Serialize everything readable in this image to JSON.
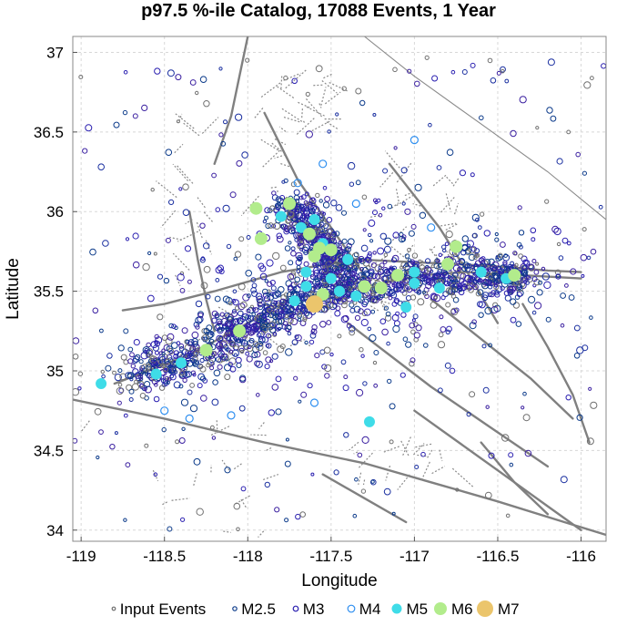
{
  "chart_data": {
    "type": "scatter",
    "title": "p97.5 %-ile Catalog, 17088 Events, 1 Year",
    "xlabel": "Longitude",
    "ylabel": "Latitude",
    "xlim": [
      -119.05,
      -115.85
    ],
    "ylim": [
      33.93,
      37.1
    ],
    "xticks": [
      -119,
      -118.5,
      -118,
      -117.5,
      -117,
      -116.5,
      -116
    ],
    "xtick_labels": [
      "-119",
      "-118.5",
      "-118",
      "-117.5",
      "-117",
      "-116.5",
      "-116"
    ],
    "yticks": [
      34,
      34.5,
      35,
      35.5,
      36,
      36.5,
      37
    ],
    "ytick_labels": [
      "34",
      "34.5",
      "35",
      "35.5",
      "36",
      "36.5",
      "37"
    ],
    "grid": true,
    "legend_position": "bottom",
    "legend": [
      {
        "label": "Input Events",
        "marker": "ring",
        "color": "#707070"
      },
      {
        "label": "M2.5",
        "marker": "ring",
        "color": "#0b3a8a"
      },
      {
        "label": "M3",
        "marker": "ring",
        "color": "#2a1fb0"
      },
      {
        "label": "M4",
        "marker": "ring",
        "color": "#2f8ff0"
      },
      {
        "label": "M5",
        "marker": "disc",
        "color": "#3fdce8"
      },
      {
        "label": "M6",
        "marker": "disc",
        "color": "#b2ec8c"
      },
      {
        "label": "M7",
        "marker": "disc",
        "color": "#ebc56c"
      }
    ],
    "events_M7": [
      {
        "lon": -117.6,
        "lat": 35.42
      }
    ],
    "events_M6": [
      {
        "lon": -116.75,
        "lat": 35.78
      },
      {
        "lon": -116.8,
        "lat": 35.67
      },
      {
        "lon": -117.1,
        "lat": 35.6
      },
      {
        "lon": -117.5,
        "lat": 35.76
      },
      {
        "lon": -117.57,
        "lat": 35.77
      },
      {
        "lon": -117.63,
        "lat": 35.86
      },
      {
        "lon": -117.6,
        "lat": 35.72
      },
      {
        "lon": -117.3,
        "lat": 35.53
      },
      {
        "lon": -117.55,
        "lat": 35.48
      },
      {
        "lon": -117.92,
        "lat": 35.83
      },
      {
        "lon": -117.95,
        "lat": 36.02
      },
      {
        "lon": -117.75,
        "lat": 36.05
      },
      {
        "lon": -116.4,
        "lat": 35.6
      },
      {
        "lon": -117.2,
        "lat": 35.52
      },
      {
        "lon": -118.05,
        "lat": 35.25
      },
      {
        "lon": -118.25,
        "lat": 35.13
      }
    ],
    "events_M5": [
      {
        "lon": -118.88,
        "lat": 34.92
      },
      {
        "lon": -117.27,
        "lat": 34.68
      },
      {
        "lon": -117.05,
        "lat": 35.4
      },
      {
        "lon": -117.35,
        "lat": 35.47
      },
      {
        "lon": -117.45,
        "lat": 35.5
      },
      {
        "lon": -117.65,
        "lat": 35.53
      },
      {
        "lon": -117.72,
        "lat": 35.44
      },
      {
        "lon": -117.8,
        "lat": 35.97
      },
      {
        "lon": -117.68,
        "lat": 35.9
      },
      {
        "lon": -116.85,
        "lat": 35.52
      },
      {
        "lon": -117.0,
        "lat": 35.55
      },
      {
        "lon": -117.55,
        "lat": 35.8
      },
      {
        "lon": -117.6,
        "lat": 35.95
      },
      {
        "lon": -117.65,
        "lat": 35.62
      },
      {
        "lon": -117.5,
        "lat": 35.58
      },
      {
        "lon": -118.4,
        "lat": 35.05
      },
      {
        "lon": -118.55,
        "lat": 34.98
      },
      {
        "lon": -117.4,
        "lat": 35.7
      },
      {
        "lon": -116.45,
        "lat": 35.58
      },
      {
        "lon": -116.6,
        "lat": 35.62
      },
      {
        "lon": -117.0,
        "lat": 35.62
      }
    ],
    "events_M4": [
      {
        "lon": -117.0,
        "lat": 36.45
      },
      {
        "lon": -117.55,
        "lat": 36.3
      },
      {
        "lon": -118.35,
        "lat": 34.7
      },
      {
        "lon": -118.1,
        "lat": 34.72
      },
      {
        "lon": -117.6,
        "lat": 34.8
      },
      {
        "lon": -117.7,
        "lat": 36.18
      },
      {
        "lon": -118.5,
        "lat": 34.75
      },
      {
        "lon": -117.35,
        "lat": 36.05
      },
      {
        "lon": -116.9,
        "lat": 35.9
      }
    ],
    "faults": [
      {
        "lon": [
          -119.05,
          -118.5,
          -117.9,
          -117.3,
          -116.9,
          -116.5,
          -116.1,
          -115.85
        ],
        "lat": [
          34.82,
          34.7,
          34.55,
          34.42,
          34.3,
          34.18,
          34.05,
          33.97
        ]
      },
      {
        "lon": [
          -118.8,
          -118.35,
          -118.0,
          -117.75,
          -117.45,
          -117.2,
          -116.95,
          -116.7,
          -116.35,
          -116.0
        ],
        "lat": [
          34.92,
          35.1,
          35.3,
          35.45,
          35.5,
          35.55,
          35.6,
          35.62,
          35.6,
          35.58
        ]
      },
      {
        "lon": [
          -118.75,
          -118.5,
          -118.2,
          -117.8,
          -117.35,
          -116.95,
          -116.55,
          -116.2,
          -116.0
        ],
        "lat": [
          35.38,
          35.42,
          35.5,
          35.62,
          35.7,
          35.68,
          35.66,
          35.63,
          35.62
        ]
      },
      {
        "lon": [
          -117.9,
          -117.7,
          -117.5,
          -117.3
        ],
        "lat": [
          36.62,
          36.2,
          35.9,
          35.6
        ]
      },
      {
        "lon": [
          -117.15,
          -117.0,
          -116.85,
          -116.7,
          -116.5
        ],
        "lat": [
          36.3,
          36.1,
          35.9,
          35.65,
          35.3
        ]
      },
      {
        "lon": [
          -116.9,
          -116.6,
          -116.3,
          -116.05
        ],
        "lat": [
          35.45,
          35.2,
          34.95,
          34.7
        ]
      },
      {
        "lon": [
          -117.4,
          -117.15,
          -116.9,
          -116.55,
          -116.2
        ],
        "lat": [
          35.3,
          35.1,
          34.9,
          34.65,
          34.4
        ]
      },
      {
        "lon": [
          -117.0,
          -116.8,
          -116.6,
          -116.4,
          -116.2
        ],
        "lat": [
          34.75,
          34.6,
          34.45,
          34.3,
          34.1
        ]
      },
      {
        "lon": [
          -116.35,
          -116.2,
          -116.05,
          -115.95
        ],
        "lat": [
          35.42,
          35.15,
          34.85,
          34.55
        ]
      },
      {
        "lon": [
          -118.0,
          -118.05,
          -118.1,
          -118.2
        ],
        "lat": [
          37.1,
          36.85,
          36.6,
          36.3
        ]
      },
      {
        "lon": [
          -118.35,
          -118.3,
          -118.25,
          -118.2
        ],
        "lat": [
          36.0,
          35.7,
          35.45,
          35.25
        ]
      },
      {
        "lon": [
          -116.6,
          -116.4,
          -116.2,
          -116.0
        ],
        "lat": [
          34.55,
          34.3,
          34.15,
          34.0
        ]
      },
      {
        "lon": [
          -117.55,
          -117.3,
          -117.05
        ],
        "lat": [
          34.35,
          34.2,
          34.05
        ]
      }
    ],
    "fault_line_thin": {
      "lon": [
        -117.3,
        -117.0,
        -116.6,
        -116.2,
        -115.85
      ],
      "lat": [
        37.1,
        36.85,
        36.55,
        36.25,
        35.95
      ]
    },
    "cluster_main": [
      {
        "lon": -118.65,
        "lat": 34.97
      },
      {
        "lon": -118.5,
        "lat": 35.02
      },
      {
        "lon": -118.3,
        "lat": 35.1
      },
      {
        "lon": -118.1,
        "lat": 35.2
      },
      {
        "lon": -117.95,
        "lat": 35.3
      },
      {
        "lon": -117.8,
        "lat": 35.38
      },
      {
        "lon": -117.65,
        "lat": 35.45
      },
      {
        "lon": -117.5,
        "lat": 35.5
      },
      {
        "lon": -117.3,
        "lat": 35.53
      },
      {
        "lon": -117.1,
        "lat": 35.56
      },
      {
        "lon": -116.9,
        "lat": 35.58
      },
      {
        "lon": -116.7,
        "lat": 35.6
      },
      {
        "lon": -116.5,
        "lat": 35.6
      },
      {
        "lon": -116.35,
        "lat": 35.6
      }
    ],
    "cluster_branch": [
      {
        "lon": -117.75,
        "lat": 36.05
      },
      {
        "lon": -117.68,
        "lat": 35.95
      },
      {
        "lon": -117.6,
        "lat": 35.85
      },
      {
        "lon": -117.55,
        "lat": 35.75
      },
      {
        "lon": -117.48,
        "lat": 35.65
      },
      {
        "lon": -117.4,
        "lat": 35.57
      }
    ]
  }
}
